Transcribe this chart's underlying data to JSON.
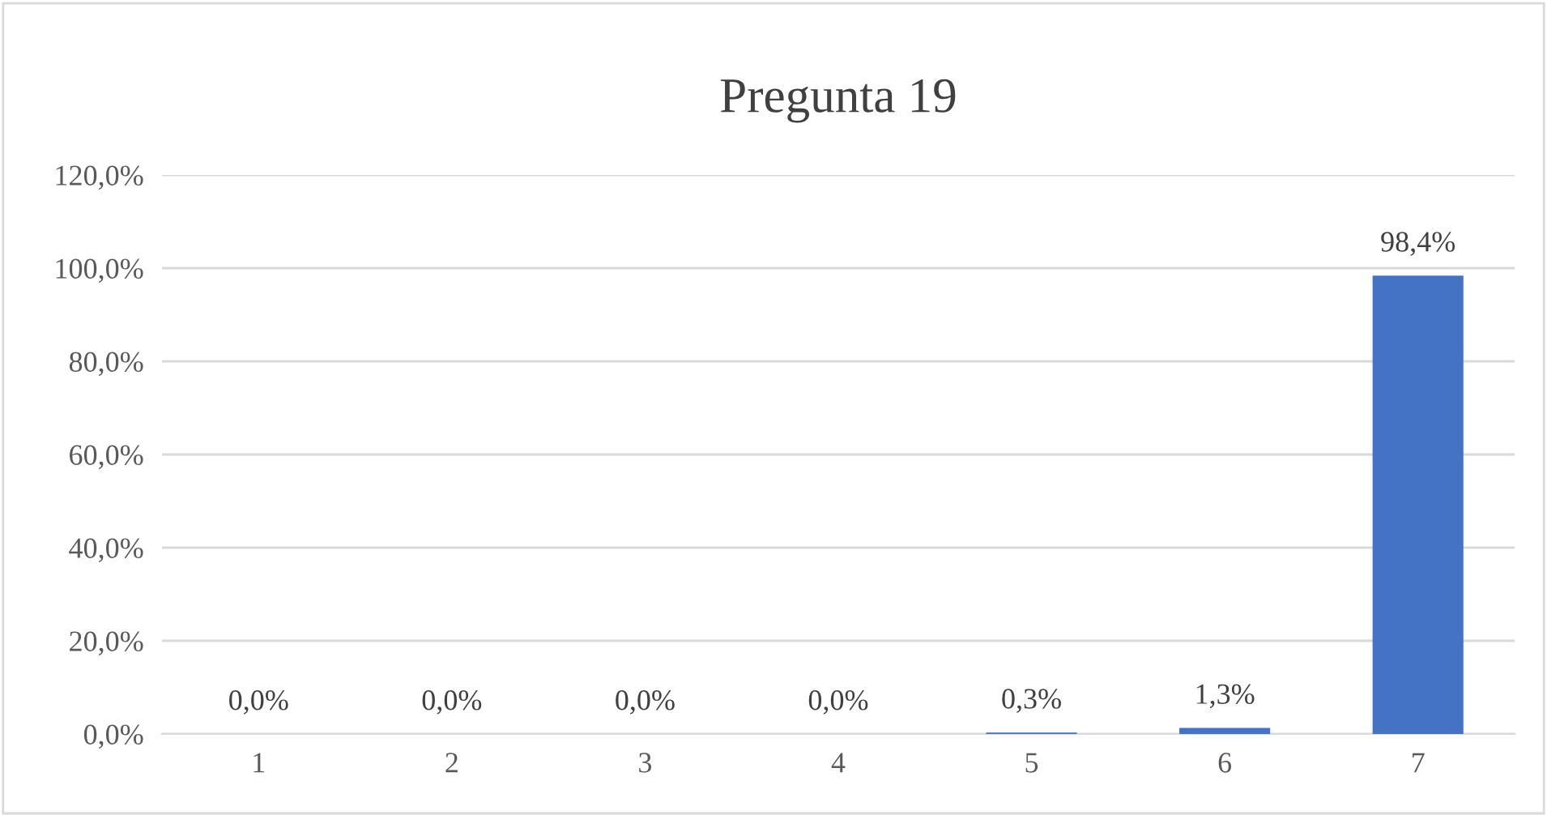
{
  "chart_data": {
    "type": "bar",
    "title": "Pregunta 19",
    "categories": [
      "1",
      "2",
      "3",
      "4",
      "5",
      "6",
      "7"
    ],
    "values": [
      0.0,
      0.0,
      0.0,
      0.0,
      0.3,
      1.3,
      98.4
    ],
    "value_labels": [
      "0,0%",
      "0,0%",
      "0,0%",
      "0,0%",
      "0,3%",
      "1,3%",
      "98,4%"
    ],
    "color": "#4472c4",
    "ylim": [
      0,
      120
    ],
    "yticks": [
      {
        "value": 0,
        "label": "0,0%"
      },
      {
        "value": 20,
        "label": "20,0%"
      },
      {
        "value": 40,
        "label": "40,0%"
      },
      {
        "value": 60,
        "label": "60,0%"
      },
      {
        "value": 80,
        "label": "80,0%"
      },
      {
        "value": 100,
        "label": "100,0%"
      },
      {
        "value": 120,
        "label": "120,0%"
      }
    ],
    "grid": "y"
  }
}
